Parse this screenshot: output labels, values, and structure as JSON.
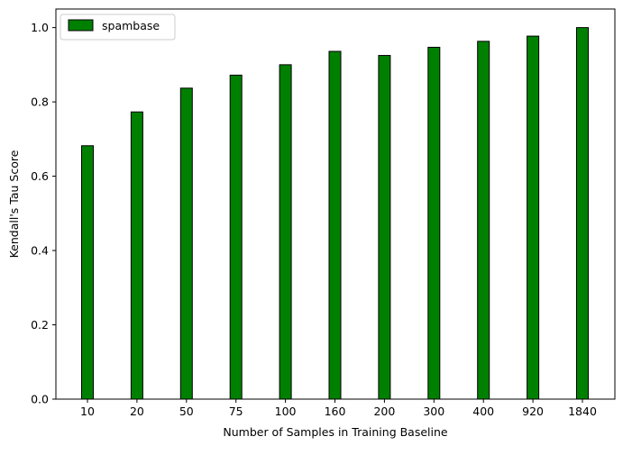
{
  "chart_data": {
    "type": "bar",
    "title": "",
    "xlabel": "Number of Samples in Training Baseline",
    "ylabel": "Kendall's Tau Score",
    "categories": [
      "10",
      "20",
      "50",
      "75",
      "100",
      "160",
      "200",
      "300",
      "400",
      "920",
      "1840"
    ],
    "series": [
      {
        "name": "spambase",
        "values": [
          0.682,
          0.773,
          0.837,
          0.872,
          0.9,
          0.936,
          0.925,
          0.947,
          0.963,
          0.977,
          1.0
        ],
        "color": "#008000",
        "edgecolor": "#000000"
      }
    ],
    "ylim": [
      0,
      1.05
    ],
    "yticks": [
      0.0,
      0.2,
      0.4,
      0.6,
      0.8,
      1.0
    ],
    "ytick_labels": [
      "0.0",
      "0.2",
      "0.4",
      "0.6",
      "0.8",
      "1.0"
    ],
    "grid": false,
    "legend_position": "top-left"
  }
}
